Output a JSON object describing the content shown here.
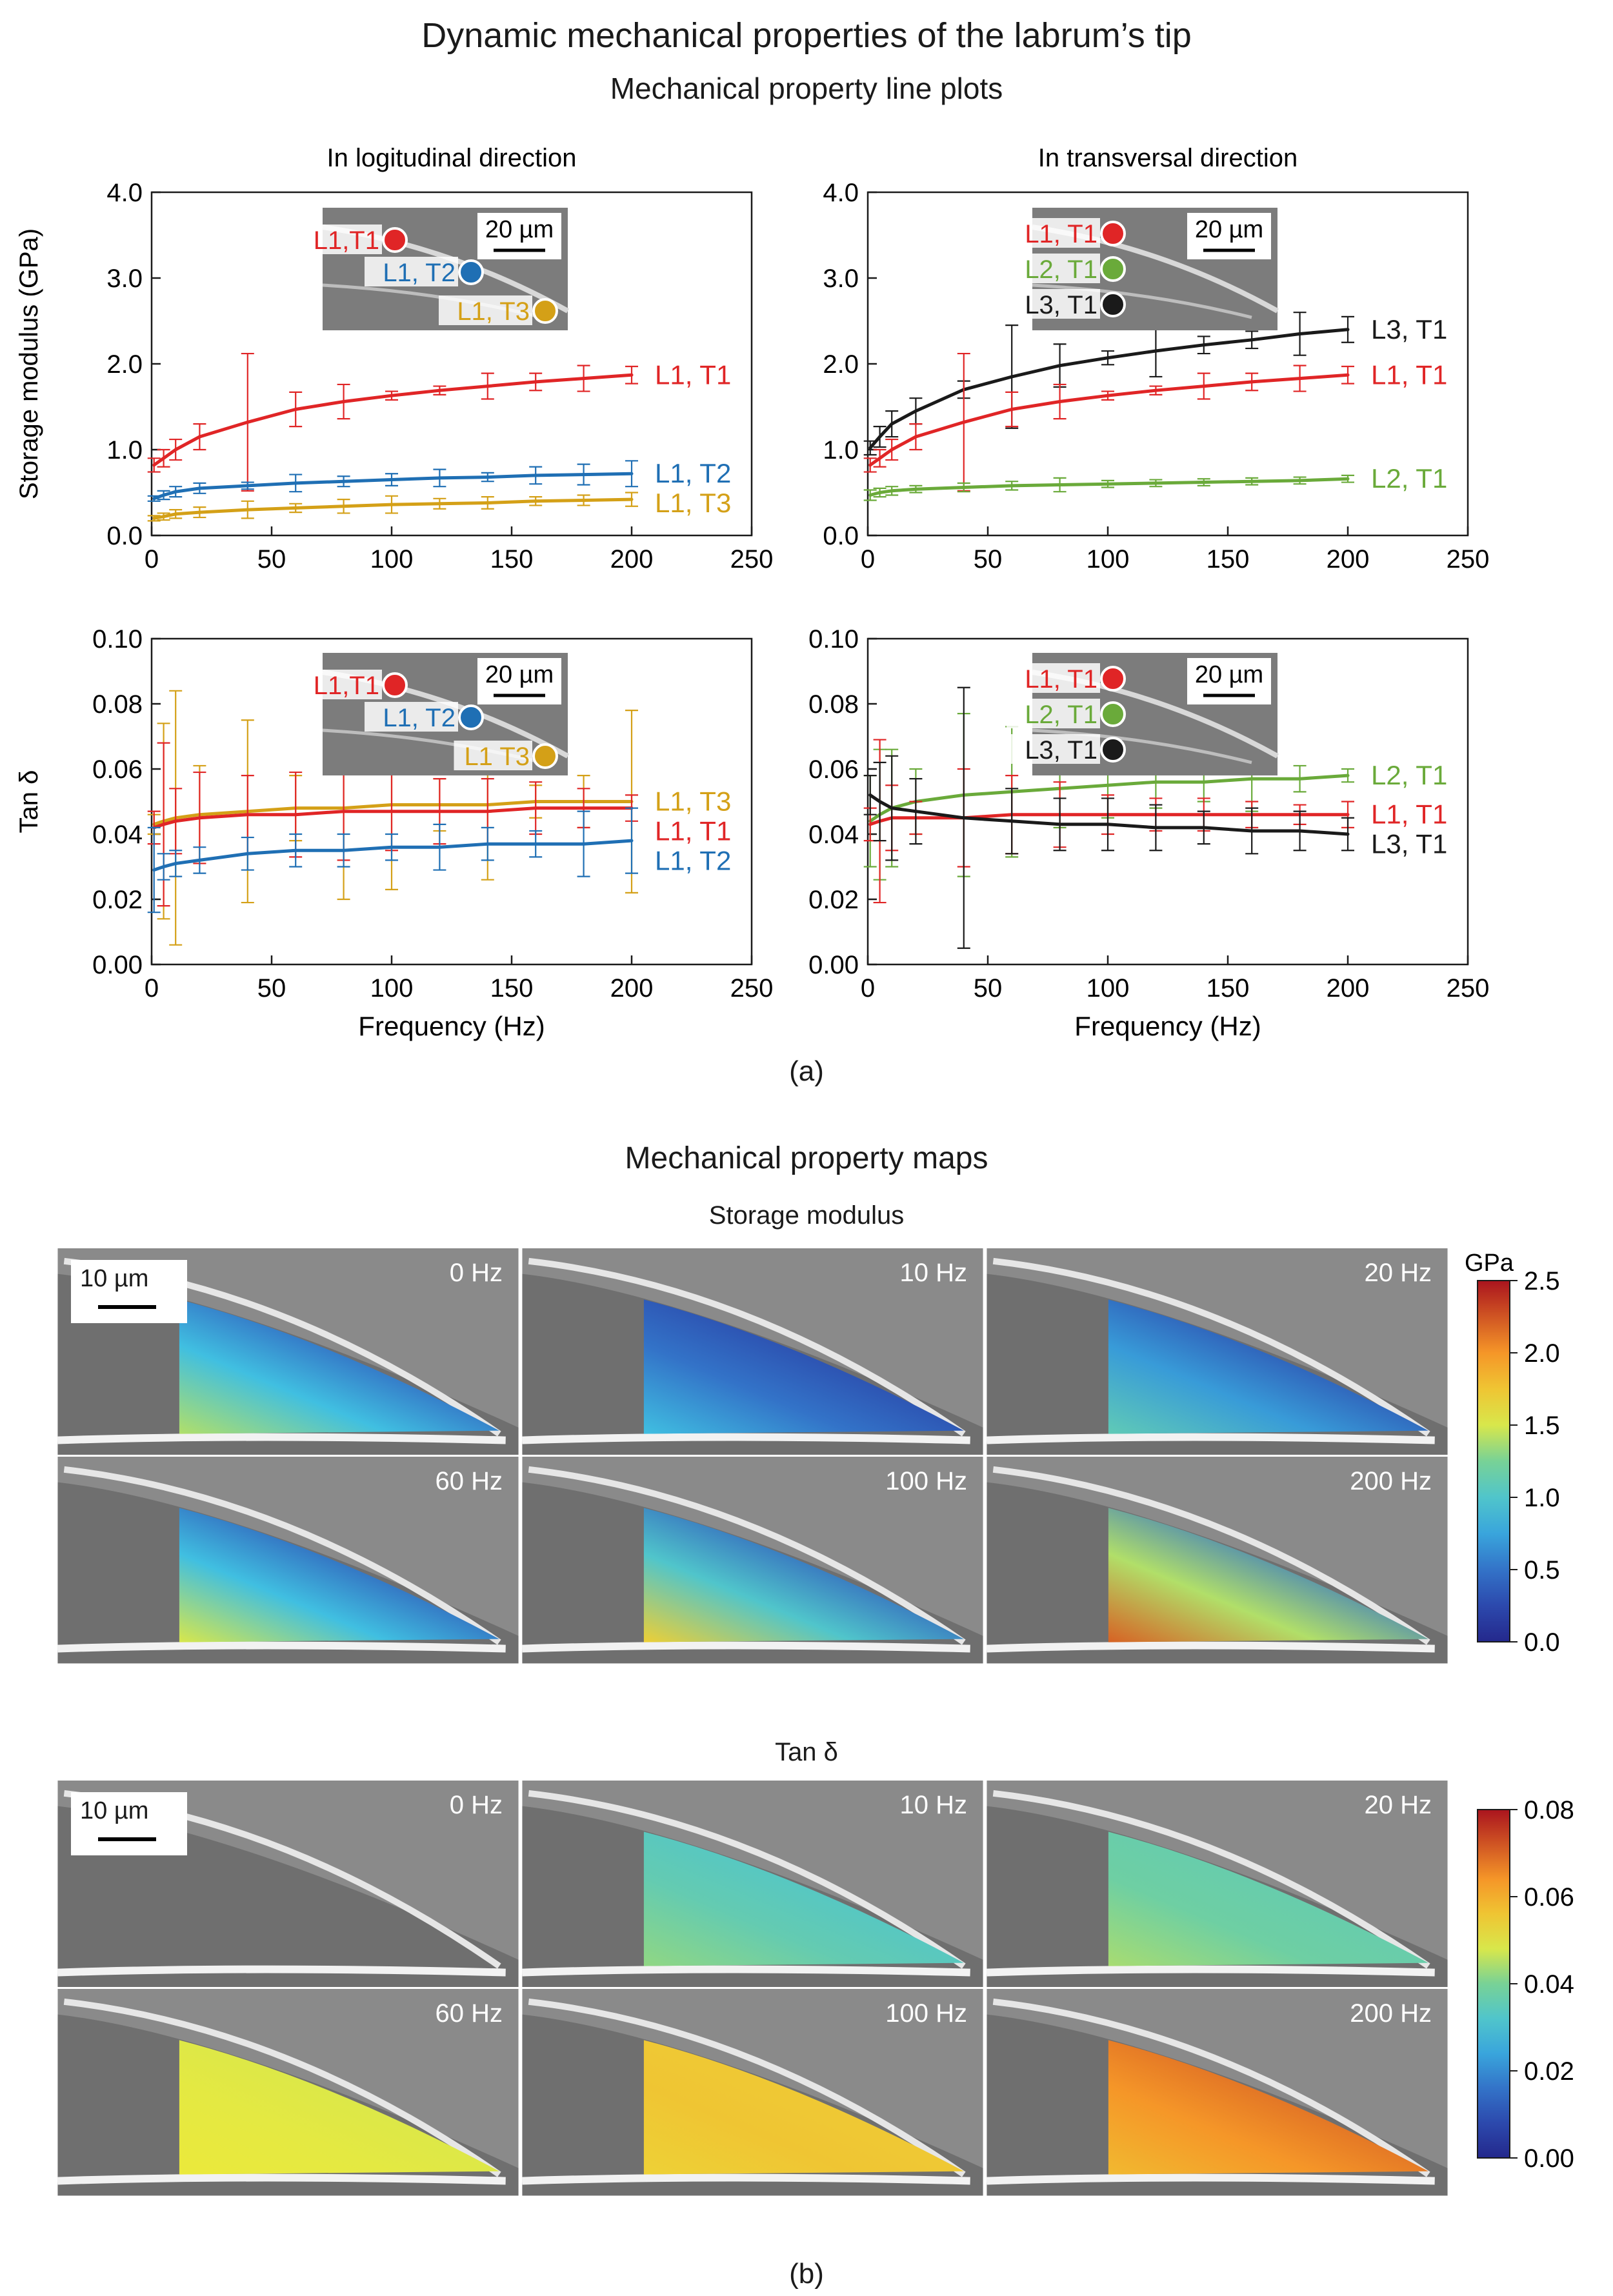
{
  "title": "Dynamic mechanical properties of the labrum’s tip",
  "subtitle": "Mechanical property line plots",
  "panel_a_label": "(a)",
  "panel_b_label": "(b)",
  "maps_title": "Mechanical property maps",
  "colors": {
    "L1, T1": "#e02526",
    "L1, T2": "#1f6fb4",
    "L1, T3": "#d4a017",
    "L2, T1": "#6aaa3a",
    "L3, T1": "#1a1a1a"
  },
  "inset": {
    "scale_label": "20 µm"
  },
  "chart_data": [
    {
      "type": "line",
      "id": "storage-longitudinal",
      "title": "In logitudinal direction",
      "ylabel": "Storage modulus (GPa)",
      "xlabel": "",
      "xlim": [
        0,
        250
      ],
      "ylim": [
        0,
        4
      ],
      "xticks": [
        0,
        50,
        100,
        150,
        200,
        250
      ],
      "yticks": [
        "0.0",
        "1.0",
        "2.0",
        "3.0",
        "4.0"
      ],
      "inset_labels": [
        {
          "text": "L1,T1",
          "series": "L1, T1"
        },
        {
          "text": "L1, T2",
          "series": "L1, T2"
        },
        {
          "text": "L1, T3",
          "series": "L1, T3"
        }
      ],
      "series": [
        {
          "name": "L1, T1",
          "x": [
            1,
            5,
            10,
            20,
            40,
            60,
            80,
            100,
            120,
            140,
            160,
            180,
            200
          ],
          "y": [
            0.82,
            0.9,
            1.0,
            1.15,
            1.32,
            1.47,
            1.56,
            1.63,
            1.69,
            1.74,
            1.79,
            1.83,
            1.87
          ],
          "err": [
            0.08,
            0.1,
            0.12,
            0.15,
            0.8,
            0.2,
            0.2,
            0.05,
            0.05,
            0.15,
            0.1,
            0.15,
            0.1
          ]
        },
        {
          "name": "L1, T2",
          "x": [
            1,
            5,
            10,
            20,
            40,
            60,
            80,
            100,
            120,
            140,
            160,
            180,
            200
          ],
          "y": [
            0.43,
            0.47,
            0.51,
            0.55,
            0.58,
            0.61,
            0.63,
            0.65,
            0.67,
            0.68,
            0.7,
            0.71,
            0.72
          ],
          "err": [
            0.03,
            0.05,
            0.06,
            0.06,
            0.04,
            0.1,
            0.06,
            0.07,
            0.1,
            0.05,
            0.1,
            0.12,
            0.15
          ]
        },
        {
          "name": "L1, T3",
          "x": [
            1,
            5,
            10,
            20,
            40,
            60,
            80,
            100,
            120,
            140,
            160,
            180,
            200
          ],
          "y": [
            0.2,
            0.22,
            0.25,
            0.27,
            0.3,
            0.32,
            0.34,
            0.36,
            0.37,
            0.38,
            0.4,
            0.41,
            0.42
          ],
          "err": [
            0.03,
            0.04,
            0.05,
            0.06,
            0.1,
            0.05,
            0.08,
            0.1,
            0.06,
            0.07,
            0.05,
            0.06,
            0.08
          ]
        }
      ]
    },
    {
      "type": "line",
      "id": "storage-transversal",
      "title": "In transversal direction",
      "ylabel": "",
      "xlabel": "",
      "xlim": [
        0,
        250
      ],
      "ylim": [
        0,
        4
      ],
      "xticks": [
        0,
        50,
        100,
        150,
        200,
        250
      ],
      "yticks": [
        "0.0",
        "1.0",
        "2.0",
        "3.0",
        "4.0"
      ],
      "inset_labels": [
        {
          "text": "L1, T1",
          "series": "L1, T1"
        },
        {
          "text": "L2, T1",
          "series": "L2, T1"
        },
        {
          "text": "L3, T1",
          "series": "L3, T1"
        }
      ],
      "series": [
        {
          "name": "L3, T1",
          "x": [
            1,
            5,
            10,
            20,
            40,
            60,
            80,
            100,
            120,
            140,
            160,
            180,
            200
          ],
          "y": [
            1.02,
            1.15,
            1.3,
            1.45,
            1.7,
            1.85,
            1.98,
            2.07,
            2.15,
            2.22,
            2.28,
            2.35,
            2.4
          ],
          "err": [
            0.08,
            0.12,
            0.15,
            0.15,
            0.1,
            0.6,
            0.25,
            0.08,
            0.3,
            0.1,
            0.1,
            0.25,
            0.15
          ]
        },
        {
          "name": "L1, T1",
          "x": [
            1,
            5,
            10,
            20,
            40,
            60,
            80,
            100,
            120,
            140,
            160,
            180,
            200
          ],
          "y": [
            0.82,
            0.9,
            1.0,
            1.15,
            1.32,
            1.47,
            1.56,
            1.63,
            1.69,
            1.74,
            1.79,
            1.83,
            1.87
          ],
          "err": [
            0.08,
            0.1,
            0.12,
            0.15,
            0.8,
            0.2,
            0.2,
            0.05,
            0.05,
            0.15,
            0.1,
            0.15,
            0.1
          ]
        },
        {
          "name": "L2, T1",
          "x": [
            1,
            5,
            10,
            20,
            40,
            60,
            80,
            100,
            120,
            140,
            160,
            180,
            200
          ],
          "y": [
            0.47,
            0.5,
            0.52,
            0.54,
            0.56,
            0.58,
            0.59,
            0.6,
            0.61,
            0.62,
            0.63,
            0.64,
            0.66
          ],
          "err": [
            0.06,
            0.05,
            0.05,
            0.04,
            0.05,
            0.05,
            0.08,
            0.04,
            0.04,
            0.04,
            0.04,
            0.04,
            0.04
          ]
        }
      ]
    },
    {
      "type": "line",
      "id": "tan-longitudinal",
      "title": "",
      "ylabel": "Tan δ",
      "xlabel": "Frequency (Hz)",
      "xlim": [
        0,
        250
      ],
      "ylim": [
        0,
        0.1
      ],
      "xticks": [
        0,
        50,
        100,
        150,
        200,
        250
      ],
      "yticks": [
        "0.00",
        "0.02",
        "0.04",
        "0.06",
        "0.08",
        "0.10"
      ],
      "inset_labels": [
        {
          "text": "L1,T1",
          "series": "L1, T1"
        },
        {
          "text": "L1, T2",
          "series": "L1, T2"
        },
        {
          "text": "L1 T3",
          "series": "L1, T3"
        }
      ],
      "series": [
        {
          "name": "L1, T3",
          "x": [
            1,
            5,
            10,
            20,
            40,
            60,
            80,
            100,
            120,
            140,
            160,
            180,
            200
          ],
          "y": [
            0.043,
            0.044,
            0.045,
            0.046,
            0.047,
            0.048,
            0.048,
            0.049,
            0.049,
            0.049,
            0.05,
            0.05,
            0.05
          ],
          "err": [
            0.003,
            0.03,
            0.039,
            0.015,
            0.028,
            0.01,
            0.028,
            0.026,
            0.008,
            0.023,
            0.005,
            0.008,
            0.028
          ]
        },
        {
          "name": "L1, T1",
          "x": [
            1,
            5,
            10,
            20,
            40,
            60,
            80,
            100,
            120,
            140,
            160,
            180,
            200
          ],
          "y": [
            0.042,
            0.043,
            0.044,
            0.045,
            0.046,
            0.046,
            0.047,
            0.047,
            0.047,
            0.047,
            0.048,
            0.048,
            0.048
          ],
          "err": [
            0.005,
            0.025,
            0.01,
            0.014,
            0.012,
            0.013,
            0.015,
            0.012,
            0.01,
            0.01,
            0.008,
            0.006,
            0.004
          ]
        },
        {
          "name": "L1, T2",
          "x": [
            1,
            5,
            10,
            20,
            40,
            60,
            80,
            100,
            120,
            140,
            160,
            180,
            200
          ],
          "y": [
            0.029,
            0.03,
            0.031,
            0.032,
            0.034,
            0.035,
            0.035,
            0.036,
            0.036,
            0.037,
            0.037,
            0.037,
            0.038
          ],
          "err": [
            0.013,
            0.004,
            0.004,
            0.004,
            0.005,
            0.005,
            0.005,
            0.004,
            0.007,
            0.005,
            0.004,
            0.01,
            0.01
          ]
        }
      ]
    },
    {
      "type": "line",
      "id": "tan-transversal",
      "title": "",
      "ylabel": "",
      "xlabel": "Frequency (Hz)",
      "xlim": [
        0,
        250
      ],
      "ylim": [
        0,
        0.1
      ],
      "xticks": [
        0,
        50,
        100,
        150,
        200,
        250
      ],
      "yticks": [
        "0.00",
        "0.02",
        "0.04",
        "0.06",
        "0.08",
        "0.10"
      ],
      "inset_labels": [
        {
          "text": "L1, T1",
          "series": "L1, T1"
        },
        {
          "text": "L2, T1",
          "series": "L2, T1"
        },
        {
          "text": "L3, T1",
          "series": "L3, T1"
        }
      ],
      "series": [
        {
          "name": "L2, T1",
          "x": [
            1,
            5,
            10,
            20,
            40,
            60,
            80,
            100,
            120,
            140,
            160,
            180,
            200
          ],
          "y": [
            0.044,
            0.046,
            0.048,
            0.05,
            0.052,
            0.053,
            0.054,
            0.055,
            0.056,
            0.056,
            0.057,
            0.057,
            0.058
          ],
          "err": [
            0.014,
            0.02,
            0.018,
            0.01,
            0.025,
            0.02,
            0.012,
            0.01,
            0.008,
            0.006,
            0.01,
            0.004,
            0.002
          ]
        },
        {
          "name": "L1, T1",
          "x": [
            1,
            5,
            10,
            20,
            40,
            60,
            80,
            100,
            120,
            140,
            160,
            180,
            200
          ],
          "y": [
            0.043,
            0.044,
            0.045,
            0.045,
            0.045,
            0.046,
            0.046,
            0.046,
            0.046,
            0.046,
            0.046,
            0.046,
            0.046
          ],
          "err": [
            0.005,
            0.025,
            0.01,
            0.005,
            0.015,
            0.012,
            0.01,
            0.006,
            0.005,
            0.005,
            0.004,
            0.003,
            0.004
          ]
        },
        {
          "name": "L3, T1",
          "x": [
            1,
            5,
            10,
            20,
            40,
            60,
            80,
            100,
            120,
            140,
            160,
            180,
            200
          ],
          "y": [
            0.052,
            0.05,
            0.048,
            0.047,
            0.045,
            0.044,
            0.043,
            0.043,
            0.042,
            0.042,
            0.041,
            0.041,
            0.04
          ],
          "err": [
            0.006,
            0.012,
            0.016,
            0.01,
            0.04,
            0.01,
            0.008,
            0.008,
            0.007,
            0.005,
            0.007,
            0.006,
            0.005
          ]
        }
      ]
    }
  ],
  "maps": [
    {
      "title": "Storage modulus",
      "scale_label": "10 µm",
      "colorbar_unit": "GPa",
      "colorbar_ticks": [
        "2.5",
        "2.0",
        "1.5",
        "1.0",
        "0.5",
        "0.0"
      ],
      "colorbar_range": [
        0,
        2.5
      ],
      "tiles": [
        {
          "freq": "0 Hz",
          "levels": [
            1.4,
            0.9,
            0.35,
            0.15
          ]
        },
        {
          "freq": "10 Hz",
          "levels": [
            0.9,
            0.5,
            0.2,
            0.1
          ]
        },
        {
          "freq": "20 Hz",
          "levels": [
            1.1,
            0.7,
            0.25,
            0.15
          ]
        },
        {
          "freq": "60 Hz",
          "levels": [
            1.5,
            0.9,
            0.3,
            0.15
          ]
        },
        {
          "freq": "100 Hz",
          "levels": [
            1.7,
            1.0,
            0.35,
            0.2
          ]
        },
        {
          "freq": "200 Hz",
          "levels": [
            2.2,
            1.4,
            0.5,
            0.2
          ]
        }
      ]
    },
    {
      "title": "Tan δ",
      "scale_label": "10 µm",
      "colorbar_unit": "",
      "colorbar_ticks": [
        "0.08",
        "0.06",
        "0.04",
        "0.02",
        "0.00"
      ],
      "colorbar_range": [
        0,
        0.08
      ],
      "tiles": [
        {
          "freq": "0 Hz",
          "levels": null
        },
        {
          "freq": "10 Hz",
          "levels": [
            0.042,
            0.036,
            0.032,
            0.04
          ]
        },
        {
          "freq": "20 Hz",
          "levels": [
            0.044,
            0.038,
            0.036,
            0.042
          ]
        },
        {
          "freq": "60 Hz",
          "levels": [
            0.05,
            0.049,
            0.048,
            0.046
          ]
        },
        {
          "freq": "100 Hz",
          "levels": [
            0.054,
            0.056,
            0.055,
            0.05
          ]
        },
        {
          "freq": "200 Hz",
          "levels": [
            0.058,
            0.064,
            0.07,
            0.06
          ]
        }
      ]
    }
  ]
}
